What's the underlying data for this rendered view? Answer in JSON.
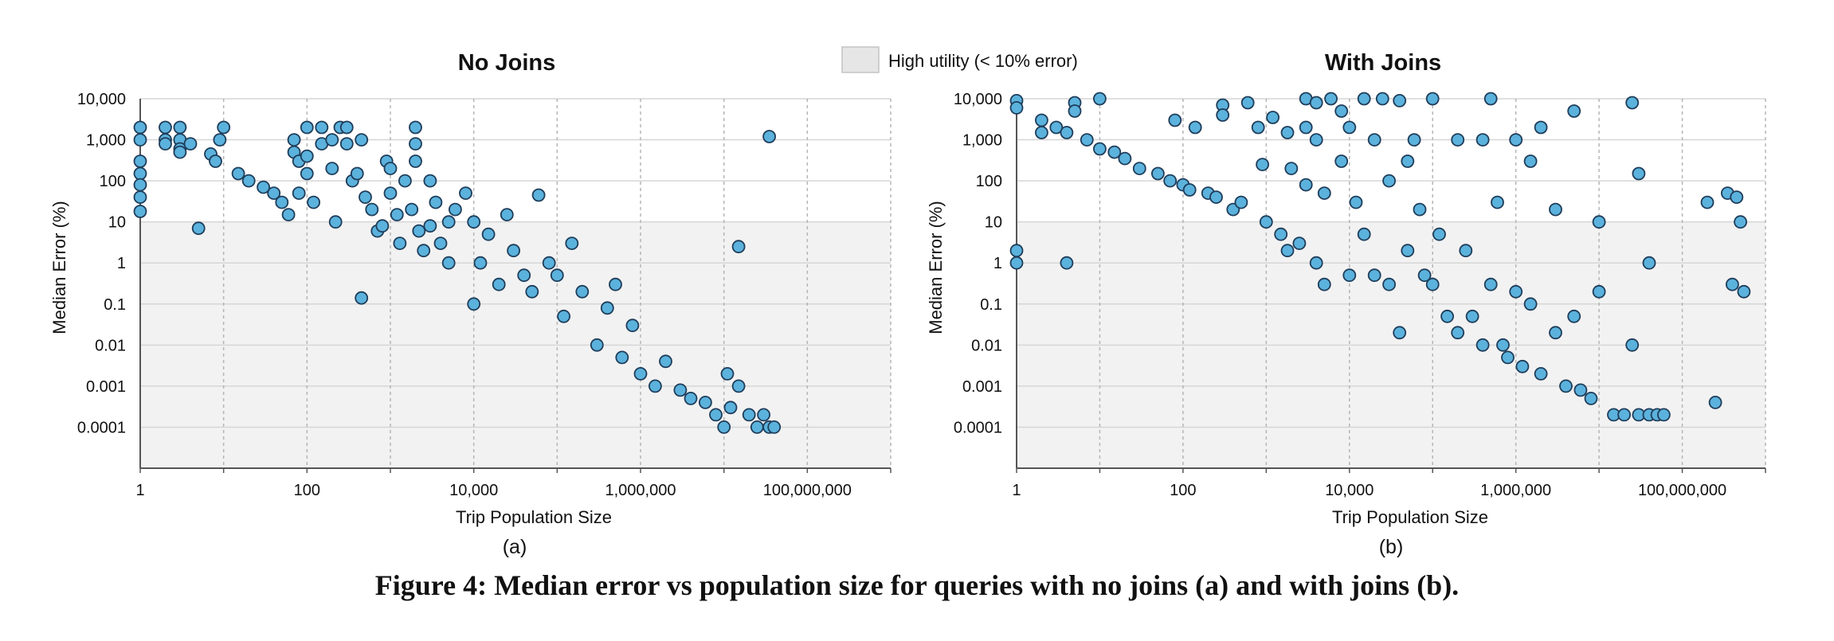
{
  "legend": {
    "label": "High utility (< 10% error)",
    "fill": "#e6e6e6"
  },
  "colors": {
    "point_fill": "#5bb2dc",
    "point_stroke": "#1f3d5a",
    "band": "#f2f2f2",
    "grid": "#cccccc"
  },
  "caption": "Figure 4: Median error vs population size for queries with no joins (a) and with joins (b).",
  "chart_data": [
    {
      "type": "scatter",
      "title": "No Joins",
      "sublabel": "(a)",
      "xlabel": "Trip Population Size",
      "ylabel": "Median Error (%)",
      "x_scale": "log",
      "y_scale": "log",
      "xlim": [
        1,
        1000000000
      ],
      "ylim": [
        1e-05,
        10000
      ],
      "x_ticks": [
        {
          "value": 1,
          "label": "1"
        },
        {
          "value": 100,
          "label": "100"
        },
        {
          "value": 10000,
          "label": "10,000"
        },
        {
          "value": 1000000,
          "label": "1,000,000"
        },
        {
          "value": 100000000,
          "label": "100,000,000"
        }
      ],
      "y_ticks": [
        {
          "value": 10000,
          "label": "10,000"
        },
        {
          "value": 1000,
          "label": "1,000"
        },
        {
          "value": 100,
          "label": "100"
        },
        {
          "value": 10,
          "label": "10"
        },
        {
          "value": 1,
          "label": "1"
        },
        {
          "value": 0.1,
          "label": "0.1"
        },
        {
          "value": 0.01,
          "label": "0.01"
        },
        {
          "value": 0.001,
          "label": "0.001"
        },
        {
          "value": 0.0001,
          "label": "0.0001"
        }
      ],
      "high_utility_band": [
        1e-05,
        10
      ],
      "points": [
        [
          1,
          2000
        ],
        [
          1,
          1000
        ],
        [
          1,
          300
        ],
        [
          1,
          150
        ],
        [
          1,
          80
        ],
        [
          1,
          40
        ],
        [
          1,
          18
        ],
        [
          2,
          2000
        ],
        [
          2,
          1000
        ],
        [
          2,
          800
        ],
        [
          3,
          2000
        ],
        [
          3,
          1000
        ],
        [
          3,
          600
        ],
        [
          3,
          500
        ],
        [
          4,
          800
        ],
        [
          5,
          7
        ],
        [
          7,
          450
        ],
        [
          8,
          300
        ],
        [
          9,
          1000
        ],
        [
          10,
          2000
        ],
        [
          15,
          150
        ],
        [
          20,
          100
        ],
        [
          30,
          70
        ],
        [
          40,
          50
        ],
        [
          50,
          30
        ],
        [
          60,
          15
        ],
        [
          70,
          1000
        ],
        [
          70,
          500
        ],
        [
          80,
          300
        ],
        [
          80,
          50
        ],
        [
          100,
          2000
        ],
        [
          100,
          400
        ],
        [
          100,
          150
        ],
        [
          120,
          30
        ],
        [
          150,
          2000
        ],
        [
          150,
          800
        ],
        [
          200,
          1000
        ],
        [
          200,
          200
        ],
        [
          220,
          10
        ],
        [
          250,
          2000
        ],
        [
          300,
          2000
        ],
        [
          300,
          800
        ],
        [
          350,
          100
        ],
        [
          400,
          150
        ],
        [
          450,
          1000
        ],
        [
          500,
          40
        ],
        [
          600,
          20
        ],
        [
          700,
          6
        ],
        [
          800,
          8
        ],
        [
          900,
          300
        ],
        [
          1000,
          200
        ],
        [
          1000,
          50
        ],
        [
          1200,
          15
        ],
        [
          1300,
          3
        ],
        [
          450,
          0.14
        ],
        [
          1500,
          100
        ],
        [
          1800,
          20
        ],
        [
          2000,
          2000
        ],
        [
          2000,
          800
        ],
        [
          2000,
          300
        ],
        [
          2200,
          6
        ],
        [
          2500,
          2
        ],
        [
          3000,
          100
        ],
        [
          3000,
          8
        ],
        [
          3500,
          30
        ],
        [
          4000,
          3
        ],
        [
          5000,
          10
        ],
        [
          5000,
          1
        ],
        [
          6000,
          20
        ],
        [
          8000,
          50
        ],
        [
          10000,
          10
        ],
        [
          10000,
          0.1
        ],
        [
          12000,
          1
        ],
        [
          15000,
          5
        ],
        [
          20000,
          0.3
        ],
        [
          25000,
          15
        ],
        [
          30000,
          2
        ],
        [
          40000,
          0.5
        ],
        [
          50000,
          0.2
        ],
        [
          60000,
          45
        ],
        [
          80000,
          1
        ],
        [
          100000,
          0.5
        ],
        [
          120000,
          0.05
        ],
        [
          150000,
          3
        ],
        [
          200000,
          0.2
        ],
        [
          300000,
          0.01
        ],
        [
          400000,
          0.08
        ],
        [
          500000,
          0.3
        ],
        [
          600000,
          0.005
        ],
        [
          800000,
          0.03
        ],
        [
          1000000,
          0.002
        ],
        [
          1500000,
          0.001
        ],
        [
          2000000,
          0.004
        ],
        [
          3000000,
          0.0008
        ],
        [
          4000000,
          0.0005
        ],
        [
          6000000,
          0.0004
        ],
        [
          8000000,
          0.0002
        ],
        [
          10000000,
          0.0001
        ],
        [
          11000000,
          0.002
        ],
        [
          12000000,
          0.0003
        ],
        [
          15000000,
          0.001
        ],
        [
          20000000,
          0.0002
        ],
        [
          25000000,
          0.0001
        ],
        [
          30000000,
          0.0002
        ],
        [
          35000000,
          0.0001
        ],
        [
          40000000,
          0.0001
        ],
        [
          15000000,
          2.5
        ],
        [
          35000000,
          1200
        ]
      ]
    },
    {
      "type": "scatter",
      "title": "With Joins",
      "sublabel": "(b)",
      "xlabel": "Trip Population Size",
      "ylabel": "Median Error (%)",
      "x_scale": "log",
      "y_scale": "log",
      "xlim": [
        1,
        1000000000
      ],
      "ylim": [
        1e-05,
        10000
      ],
      "x_ticks": [
        {
          "value": 1,
          "label": "1"
        },
        {
          "value": 100,
          "label": "100"
        },
        {
          "value": 10000,
          "label": "10,000"
        },
        {
          "value": 1000000,
          "label": "1,000,000"
        },
        {
          "value": 100000000,
          "label": "100,000,000"
        }
      ],
      "y_ticks": [
        {
          "value": 10000,
          "label": "10,000"
        },
        {
          "value": 1000,
          "label": "1,000"
        },
        {
          "value": 100,
          "label": "100"
        },
        {
          "value": 10,
          "label": "10"
        },
        {
          "value": 1,
          "label": "1"
        },
        {
          "value": 0.1,
          "label": "0.1"
        },
        {
          "value": 0.01,
          "label": "0.01"
        },
        {
          "value": 0.001,
          "label": "0.001"
        },
        {
          "value": 0.0001,
          "label": "0.0001"
        }
      ],
      "high_utility_band": [
        1e-05,
        10
      ],
      "points": [
        [
          1,
          9000
        ],
        [
          1,
          6000
        ],
        [
          1,
          2
        ],
        [
          1,
          1
        ],
        [
          2,
          3000
        ],
        [
          2,
          1500
        ],
        [
          3,
          2000
        ],
        [
          4,
          1500
        ],
        [
          4,
          1
        ],
        [
          5,
          8000
        ],
        [
          5,
          5000
        ],
        [
          7,
          1000
        ],
        [
          10,
          10000
        ],
        [
          10,
          600
        ],
        [
          15,
          500
        ],
        [
          20,
          350
        ],
        [
          30,
          200
        ],
        [
          50,
          150
        ],
        [
          70,
          100
        ],
        [
          80,
          3000
        ],
        [
          100,
          80
        ],
        [
          120,
          60
        ],
        [
          140,
          2000
        ],
        [
          200,
          50
        ],
        [
          250,
          40
        ],
        [
          300,
          7000
        ],
        [
          300,
          4000
        ],
        [
          400,
          20
        ],
        [
          500,
          30
        ],
        [
          600,
          8000
        ],
        [
          800,
          2000
        ],
        [
          900,
          250
        ],
        [
          1000,
          10
        ],
        [
          1200,
          3500
        ],
        [
          1500,
          5
        ],
        [
          1800,
          1500
        ],
        [
          1800,
          2
        ],
        [
          2000,
          200
        ],
        [
          2500,
          3
        ],
        [
          3000,
          10000
        ],
        [
          3000,
          80
        ],
        [
          3000,
          2000
        ],
        [
          4000,
          1000
        ],
        [
          4000,
          1
        ],
        [
          4000,
          8000
        ],
        [
          5000,
          50
        ],
        [
          5000,
          0.3
        ],
        [
          6000,
          10000
        ],
        [
          8000,
          5000
        ],
        [
          8000,
          300
        ],
        [
          10000,
          2000
        ],
        [
          10000,
          0.5
        ],
        [
          12000,
          30
        ],
        [
          15000,
          10000
        ],
        [
          15000,
          5
        ],
        [
          20000,
          0.5
        ],
        [
          20000,
          1000
        ],
        [
          25000,
          10000
        ],
        [
          30000,
          100
        ],
        [
          30000,
          0.3
        ],
        [
          40000,
          9000
        ],
        [
          40000,
          0.02
        ],
        [
          50000,
          300
        ],
        [
          50000,
          2
        ],
        [
          60000,
          1000
        ],
        [
          70000,
          20
        ],
        [
          80000,
          0.5
        ],
        [
          100000,
          10000
        ],
        [
          100000,
          0.3
        ],
        [
          120000,
          5
        ],
        [
          150000,
          0.05
        ],
        [
          200000,
          1000
        ],
        [
          200000,
          0.02
        ],
        [
          250000,
          2
        ],
        [
          300000,
          0.05
        ],
        [
          400000,
          1000
        ],
        [
          400000,
          0.01
        ],
        [
          500000,
          10000
        ],
        [
          500000,
          0.3
        ],
        [
          600000,
          30
        ],
        [
          700000,
          0.01
        ],
        [
          800000,
          0.005
        ],
        [
          1000000,
          1000
        ],
        [
          1000000,
          0.2
        ],
        [
          1200000,
          0.003
        ],
        [
          1500000,
          300
        ],
        [
          1500000,
          0.1
        ],
        [
          2000000,
          2000
        ],
        [
          2000000,
          0.002
        ],
        [
          3000000,
          0.02
        ],
        [
          3000000,
          20
        ],
        [
          4000000,
          0.001
        ],
        [
          5000000,
          5000
        ],
        [
          5000000,
          0.05
        ],
        [
          6000000,
          0.0008
        ],
        [
          8000000,
          0.0005
        ],
        [
          10000000,
          0.2
        ],
        [
          10000000,
          10
        ],
        [
          15000000,
          0.0002
        ],
        [
          20000000,
          0.0002
        ],
        [
          25000000,
          0.01
        ],
        [
          30000000,
          0.0002
        ],
        [
          40000000,
          0.0002
        ],
        [
          50000000,
          0.0002
        ],
        [
          60000000,
          0.0002
        ],
        [
          25000000,
          8000
        ],
        [
          30000000,
          150
        ],
        [
          40000000,
          1
        ],
        [
          200000000,
          30
        ],
        [
          250000000,
          0.0004
        ],
        [
          350000000,
          50
        ],
        [
          400000000,
          0.3
        ],
        [
          450000000,
          40
        ],
        [
          500000000,
          10
        ],
        [
          550000000,
          0.2
        ]
      ]
    }
  ]
}
